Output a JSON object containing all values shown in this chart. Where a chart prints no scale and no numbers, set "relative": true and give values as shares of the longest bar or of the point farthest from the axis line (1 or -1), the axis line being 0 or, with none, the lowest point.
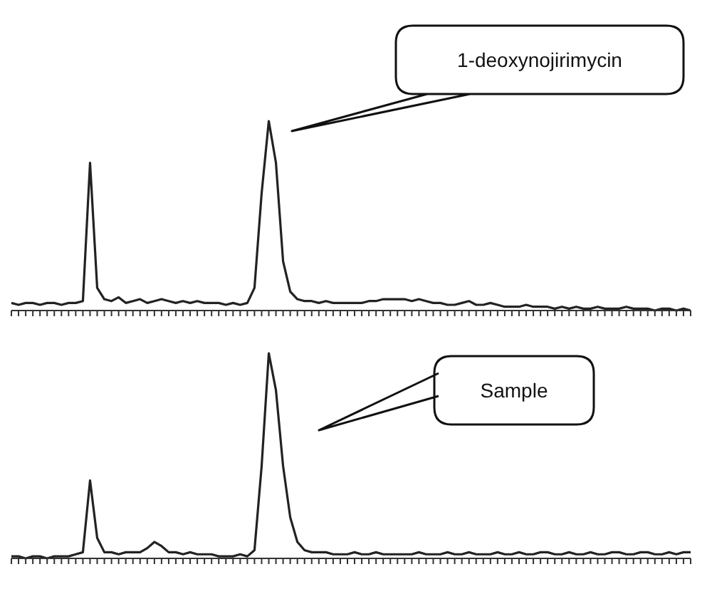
{
  "chart_data": [
    {
      "type": "line",
      "relative": true,
      "marker": "none",
      "color": "#222222",
      "annotations": [
        "1-deoxynojirimycin"
      ],
      "categories": [
        null,
        null,
        null,
        null,
        null,
        null,
        null,
        null,
        null,
        null,
        null,
        null,
        null,
        null,
        null,
        null,
        null,
        null,
        null,
        null,
        null,
        null,
        null,
        null,
        null,
        null,
        null,
        null,
        null,
        null,
        null,
        null,
        null,
        null,
        null,
        null,
        null,
        null,
        null,
        null,
        null,
        null,
        null,
        null,
        null,
        null,
        null,
        null,
        null,
        null,
        null,
        null,
        null,
        null,
        null,
        null,
        null,
        null,
        null,
        null,
        null,
        null,
        null,
        null,
        null,
        null,
        null,
        null,
        null,
        null,
        null,
        null,
        null,
        null,
        null,
        null,
        null,
        null,
        null,
        null,
        null,
        null,
        null,
        null,
        null,
        null,
        null,
        null,
        null,
        null,
        null,
        null,
        null,
        null,
        null,
        null
      ],
      "values": [
        0.04,
        0.03,
        0.04,
        0.04,
        0.03,
        0.04,
        0.04,
        0.03,
        0.04,
        0.04,
        0.05,
        0.78,
        0.12,
        0.06,
        0.05,
        0.07,
        0.04,
        0.05,
        0.06,
        0.04,
        0.05,
        0.06,
        0.05,
        0.04,
        0.05,
        0.04,
        0.05,
        0.04,
        0.04,
        0.04,
        0.03,
        0.04,
        0.03,
        0.04,
        0.12,
        0.62,
        1,
        0.78,
        0.26,
        0.1,
        0.06,
        0.05,
        0.05,
        0.04,
        0.05,
        0.04,
        0.04,
        0.04,
        0.04,
        0.04,
        0.05,
        0.05,
        0.06,
        0.06,
        0.06,
        0.06,
        0.05,
        0.06,
        0.05,
        0.04,
        0.04,
        0.03,
        0.03,
        0.04,
        0.05,
        0.03,
        0.03,
        0.04,
        0.03,
        0.02,
        0.02,
        0.02,
        0.03,
        0.02,
        0.02,
        0.02,
        0.01,
        0.02,
        0.01,
        0.02,
        0.01,
        0.01,
        0.02,
        0.01,
        0.01,
        0.01,
        0.02,
        0.01,
        0.01,
        0.01,
        0,
        0.01,
        0.01,
        0,
        0.01,
        0
      ]
    },
    {
      "type": "line",
      "relative": true,
      "marker": "none",
      "color": "#222222",
      "annotations": [
        "Sample"
      ],
      "categories": [
        null,
        null,
        null,
        null,
        null,
        null,
        null,
        null,
        null,
        null,
        null,
        null,
        null,
        null,
        null,
        null,
        null,
        null,
        null,
        null,
        null,
        null,
        null,
        null,
        null,
        null,
        null,
        null,
        null,
        null,
        null,
        null,
        null,
        null,
        null,
        null,
        null,
        null,
        null,
        null,
        null,
        null,
        null,
        null,
        null,
        null,
        null,
        null,
        null,
        null,
        null,
        null,
        null,
        null,
        null,
        null,
        null,
        null,
        null,
        null,
        null,
        null,
        null,
        null,
        null,
        null,
        null,
        null,
        null,
        null,
        null,
        null,
        null,
        null,
        null,
        null,
        null,
        null,
        null,
        null,
        null,
        null,
        null,
        null,
        null,
        null,
        null,
        null,
        null,
        null,
        null,
        null,
        null,
        null,
        null,
        null
      ],
      "values": [
        0.01,
        0.01,
        0,
        0.01,
        0.01,
        0,
        0.01,
        0.01,
        0.01,
        0.02,
        0.03,
        0.38,
        0.1,
        0.03,
        0.03,
        0.02,
        0.03,
        0.03,
        0.03,
        0.05,
        0.08,
        0.06,
        0.03,
        0.03,
        0.02,
        0.03,
        0.02,
        0.02,
        0.02,
        0.01,
        0.01,
        0.01,
        0.02,
        0.01,
        0.04,
        0.45,
        1,
        0.82,
        0.45,
        0.2,
        0.08,
        0.04,
        0.03,
        0.03,
        0.03,
        0.02,
        0.02,
        0.02,
        0.03,
        0.02,
        0.02,
        0.03,
        0.02,
        0.02,
        0.02,
        0.02,
        0.02,
        0.03,
        0.02,
        0.02,
        0.02,
        0.03,
        0.02,
        0.02,
        0.03,
        0.02,
        0.02,
        0.02,
        0.03,
        0.02,
        0.02,
        0.03,
        0.02,
        0.02,
        0.03,
        0.03,
        0.02,
        0.02,
        0.03,
        0.02,
        0.02,
        0.03,
        0.02,
        0.02,
        0.03,
        0.03,
        0.02,
        0.02,
        0.03,
        0.03,
        0.02,
        0.02,
        0.03,
        0.02,
        0.03,
        0.03
      ]
    }
  ]
}
